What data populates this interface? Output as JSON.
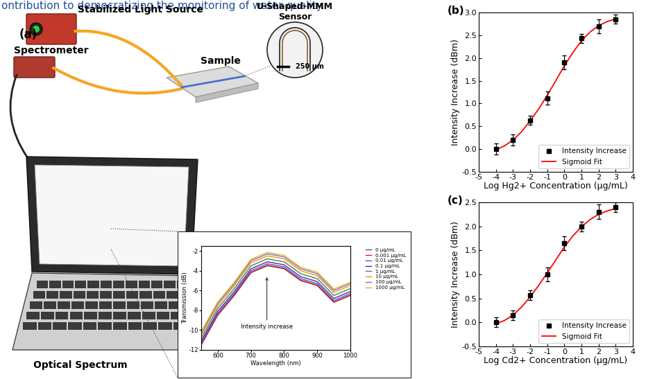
{
  "header": {
    "text": "ontribution to democratizing the monitoring of water quality."
  },
  "diagram": {
    "panel_label": "(a)",
    "light_source": "Stabilized Light Source",
    "spectrometer": "Spectrometer",
    "sample": "Sample",
    "sensor": "U-Shaped-MMM\nSensor",
    "scale_bar": "250 µm",
    "screen": "Optical Spectrum"
  },
  "chart_data": [
    {
      "type": "line",
      "xlabel": "Wavelength (nm)",
      "ylabel": "Transmission (dB)",
      "annotation": "Intensity increase",
      "legend": "upper right",
      "x": [
        550,
        600,
        650,
        700,
        750,
        800,
        850,
        900,
        950,
        1000
      ],
      "xlim": [
        550,
        1000
      ],
      "xticks": [
        600,
        700,
        800,
        900,
        1000
      ],
      "ylim": [
        -12,
        -1.5
      ],
      "yticks": [
        -12,
        -10,
        -8,
        -6,
        -4,
        -2
      ],
      "series": [
        {
          "name": "0 µg/mL",
          "color": "#555555",
          "values": [
            -11.5,
            -8.5,
            -6.5,
            -4.2,
            -3.5,
            -3.8,
            -5.0,
            -5.5,
            -7.2,
            -6.5
          ]
        },
        {
          "name": "0.001 µg/mL",
          "color": "#e41a1c",
          "values": [
            -11.45,
            -8.45,
            -6.45,
            -4.15,
            -3.45,
            -3.75,
            -4.95,
            -5.45,
            -7.15,
            -6.45
          ]
        },
        {
          "name": "0.01 µg/mL",
          "color": "#3b5bdb",
          "values": [
            -11.3,
            -8.3,
            -6.3,
            -4.0,
            -3.3,
            -3.6,
            -4.8,
            -5.3,
            -7.0,
            -6.3
          ]
        },
        {
          "name": "0.1 µg/mL",
          "color": "#6a1b9a",
          "values": [
            -11.1,
            -8.1,
            -6.1,
            -3.8,
            -3.1,
            -3.4,
            -4.6,
            -5.1,
            -6.8,
            -6.1
          ]
        },
        {
          "name": "1 µg/mL",
          "color": "#2e8b57",
          "values": [
            -10.8,
            -7.8,
            -5.8,
            -3.5,
            -2.8,
            -3.1,
            -4.3,
            -4.8,
            -6.5,
            -5.8
          ]
        },
        {
          "name": "10 µg/mL",
          "color": "#ff8c00",
          "values": [
            -10.5,
            -7.5,
            -5.5,
            -3.2,
            -2.5,
            -2.8,
            -4.0,
            -4.5,
            -6.2,
            -5.5
          ]
        },
        {
          "name": "100 µg/mL",
          "color": "#7b68ee",
          "values": [
            -10.3,
            -7.3,
            -5.3,
            -3.0,
            -2.3,
            -2.6,
            -3.8,
            -4.3,
            -6.0,
            -5.3
          ]
        },
        {
          "name": "1000 µg/mL",
          "color": "#e6b800",
          "values": [
            -10.15,
            -7.15,
            -5.15,
            -2.85,
            -2.15,
            -2.45,
            -3.65,
            -4.15,
            -5.85,
            -5.15
          ]
        }
      ]
    },
    {
      "type": "scatter",
      "panel": "(b)",
      "xlabel": "Log Hg2+ Concentration (µg/mL)",
      "ylabel": "Intensity Increase (dBm)",
      "legend": "lower right",
      "xlim": [
        -5,
        4
      ],
      "xticks": [
        -5,
        -4,
        -3,
        -2,
        -1,
        0,
        1,
        2,
        3,
        4
      ],
      "ylim": [
        -0.5,
        3.0
      ],
      "yticks": [
        -0.5,
        {
          "value": 0,
          "label": "0.0"
        },
        0.5,
        {
          "value": 1,
          "label": "1.0"
        },
        1.5,
        {
          "value": 2,
          "label": "2.0"
        },
        2.5,
        {
          "value": 3,
          "label": "3.0"
        }
      ],
      "series": [
        {
          "name": "Intensity Increase",
          "type": "scatter",
          "color": "#000000",
          "marker": "square",
          "x": [
            -4,
            -3,
            -2,
            -1,
            0,
            1,
            2,
            3
          ],
          "values": [
            0.0,
            0.2,
            0.63,
            1.12,
            1.9,
            2.43,
            2.7,
            2.85
          ],
          "errors": [
            0.12,
            0.12,
            0.1,
            0.15,
            0.15,
            0.1,
            0.15,
            0.1
          ]
        },
        {
          "name": "Sigmoid Fit",
          "type": "line",
          "color": "#ff0000",
          "line_style": "solid",
          "x": [
            -4,
            -3.5,
            -3,
            -2.5,
            -2,
            -1.5,
            -1,
            -0.5,
            0,
            0.5,
            1,
            1.5,
            2,
            2.5,
            3
          ],
          "values": [
            -0.02,
            0.07,
            0.2,
            0.38,
            0.62,
            0.88,
            1.18,
            1.5,
            1.83,
            2.12,
            2.38,
            2.57,
            2.71,
            2.8,
            2.86
          ]
        }
      ]
    },
    {
      "type": "scatter",
      "panel": "(c)",
      "xlabel": "Log Cd2+ Concentration (µg/mL)",
      "ylabel": "Intensity Increase (dBm)",
      "legend": "lower right",
      "xlim": [
        -5,
        4
      ],
      "xticks": [
        -5,
        -4,
        -3,
        -2,
        -1,
        0,
        1,
        2,
        3,
        4
      ],
      "ylim": [
        -0.5,
        2.5
      ],
      "yticks": [
        -0.5,
        {
          "value": 0,
          "label": "0.0"
        },
        0.5,
        {
          "value": 1,
          "label": "1.0"
        },
        1.5,
        {
          "value": 2,
          "label": "2.0"
        },
        2.5
      ],
      "series": [
        {
          "name": "Intensity Increase",
          "type": "scatter",
          "color": "#000000",
          "marker": "square",
          "x": [
            -4,
            -3,
            -2,
            -1,
            0,
            1,
            2,
            3
          ],
          "values": [
            0.0,
            0.15,
            0.57,
            1.0,
            1.65,
            2.0,
            2.3,
            2.4
          ],
          "errors": [
            0.1,
            0.1,
            0.1,
            0.15,
            0.15,
            0.1,
            0.15,
            0.1
          ]
        },
        {
          "name": "Sigmoid Fit",
          "type": "line",
          "color": "#ff0000",
          "line_style": "solid",
          "x": [
            -4,
            -3.5,
            -3,
            -2.5,
            -2,
            -1.5,
            -1,
            -0.5,
            0,
            0.5,
            1,
            1.5,
            2,
            2.5,
            3
          ],
          "values": [
            -0.03,
            0.04,
            0.15,
            0.32,
            0.53,
            0.77,
            1.03,
            1.3,
            1.57,
            1.8,
            1.99,
            2.14,
            2.25,
            2.32,
            2.37
          ]
        }
      ]
    }
  ]
}
